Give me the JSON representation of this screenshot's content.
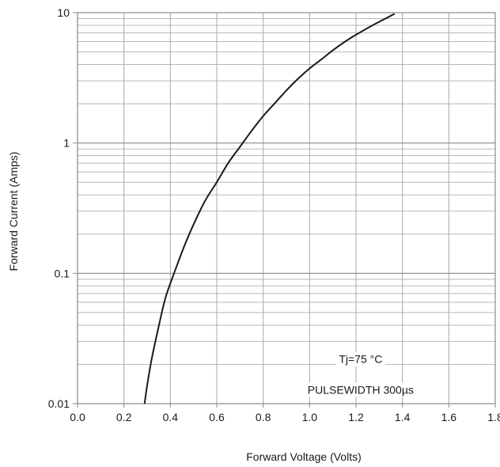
{
  "chart_data": {
    "type": "line",
    "title": "",
    "xlabel": "Forward Voltage (Volts)",
    "ylabel": "Forward Current (Amps)",
    "xlim": [
      0.0,
      1.8
    ],
    "ylim": [
      0.01,
      10
    ],
    "y_scale": "log",
    "grid": true,
    "x_ticks": [
      0.0,
      0.2,
      0.4,
      0.6,
      0.8,
      1.0,
      1.2,
      1.4,
      1.6,
      1.8
    ],
    "x_tick_labels": [
      "0.0",
      "0.2",
      "0.4",
      "0.6",
      "0.8",
      "1.0",
      "1.2",
      "1.4",
      "1.6",
      "1.8"
    ],
    "y_ticks": [
      0.01,
      0.1,
      1,
      10
    ],
    "y_tick_labels": [
      "0.01",
      "0.1",
      "1",
      "10"
    ],
    "series": [
      {
        "x": [
          0.289,
          0.3,
          0.32,
          0.35,
          0.38,
          0.42,
          0.46,
          0.5,
          0.55,
          0.6,
          0.65,
          0.7,
          0.75,
          0.8,
          0.85,
          0.9,
          0.95,
          1.0,
          1.05,
          1.1,
          1.15,
          1.2,
          1.25,
          1.3,
          1.366
        ],
        "y": [
          0.01,
          0.0138,
          0.0222,
          0.0393,
          0.0658,
          0.1047,
          0.1617,
          0.2373,
          0.361,
          0.5,
          0.7048,
          0.9347,
          1.2397,
          1.61,
          2.02,
          2.53,
          3.11,
          3.73,
          4.37,
          5.14,
          5.95,
          6.77,
          7.62,
          8.51,
          9.8
        ],
        "color": "#1a1a1a"
      }
    ],
    "annotations": [
      {
        "text": "Tj=75 °C",
        "x": 1.22,
        "y": 0.022
      },
      {
        "text": "PULSEWIDTH 300µs",
        "x": 1.22,
        "y": 0.0128
      }
    ]
  }
}
